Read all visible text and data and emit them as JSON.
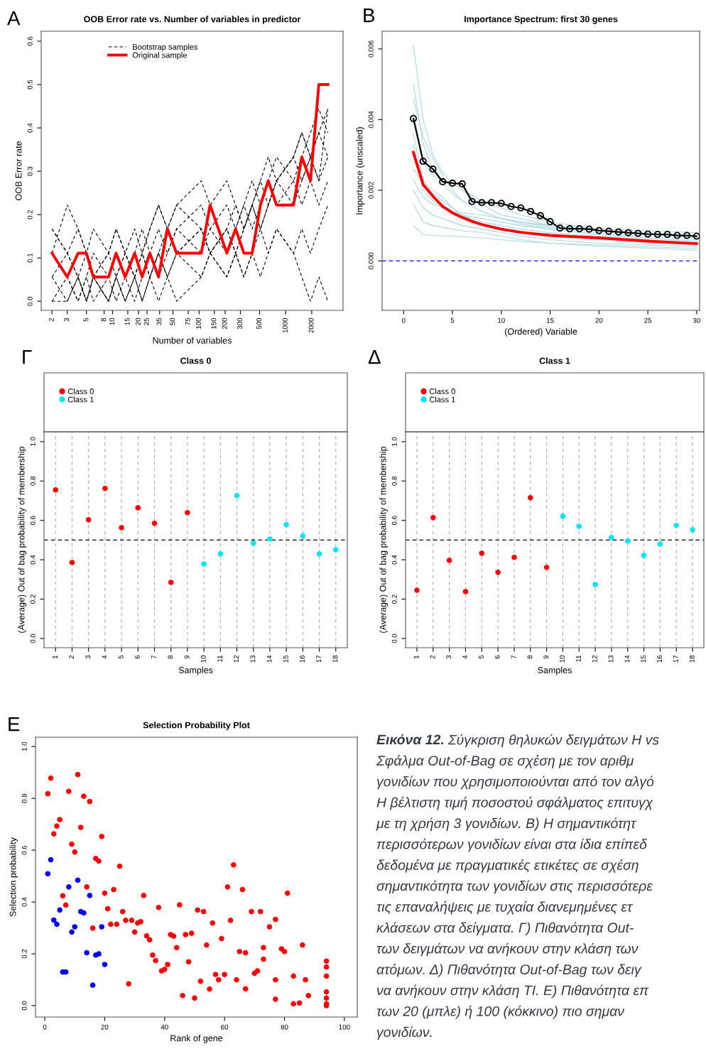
{
  "chart_data": [
    {
      "type": "line",
      "title": "OOB Error rate vs. Number of variables in predictor",
      "xlabel": "Number of variables",
      "ylabel": "OOB Error rate",
      "annotations": [
        "A"
      ],
      "log": "x",
      "legend": "top left",
      "x": [
        2,
        3,
        4,
        5,
        6,
        9,
        11,
        14,
        18,
        22,
        27,
        34,
        43,
        55,
        106,
        134,
        209,
        264,
        329,
        410,
        511,
        629,
        784,
        1233,
        1536,
        1936,
        2415,
        3070
      ],
      "xlim": [
        1.5,
        4600
      ],
      "xticks": [
        2,
        3,
        5,
        8,
        10,
        15,
        20,
        25,
        35,
        50,
        75,
        100,
        150,
        200,
        300,
        500,
        1000,
        2000
      ],
      "ylim": [
        -0.021,
        0.623
      ],
      "yticks": [
        {
          "value": 0,
          "label": "0.0"
        },
        0.1,
        0.2,
        0.3,
        0.4,
        0.5,
        0.6
      ],
      "series": [
        {
          "name": "Bootstrap samples",
          "color": "#000000",
          "line_style": "dashed",
          "values": [
            0.167,
            0.111,
            0.167,
            0.111,
            0.056,
            0.111,
            0.056,
            0.111,
            0.056,
            0.111,
            0.056,
            0.111,
            0.167,
            0.111,
            0.167,
            0.111,
            0.167,
            0.222,
            0.167,
            0.222,
            0.278,
            0.222,
            0.278,
            0.333,
            0.278,
            0.333,
            0.389,
            0.333
          ]
        },
        {
          "color": "#000000",
          "line_style": "dashed",
          "values": [
            0.056,
            0.0,
            0.056,
            0.0,
            0.056,
            0.0,
            0.056,
            0.0,
            0.056,
            0.0,
            0.056,
            0.111,
            0.056,
            0.111,
            0.056,
            0.111,
            0.167,
            0.111,
            0.167,
            0.222,
            0.167,
            0.222,
            0.278,
            0.222,
            0.278,
            0.333,
            0.278,
            0.444
          ]
        },
        {
          "color": "#000000",
          "line_style": "dashed",
          "values": [
            0.111,
            0.056,
            0.0,
            0.056,
            0.0,
            0.056,
            0.0,
            0.056,
            0.0,
            0.056,
            0.111,
            0.056,
            0.111,
            0.167,
            0.111,
            0.167,
            0.111,
            0.167,
            0.222,
            0.278,
            0.222,
            0.278,
            0.222,
            0.278,
            0.333,
            0.389,
            0.444,
            0.389
          ]
        },
        {
          "color": "#000000",
          "line_style": "dashed",
          "values": [
            0.0,
            0.056,
            0.0,
            0.056,
            0.111,
            0.056,
            0.111,
            0.056,
            0.111,
            0.167,
            0.111,
            0.167,
            0.111,
            0.167,
            0.222,
            0.167,
            0.222,
            0.167,
            0.222,
            0.167,
            0.222,
            0.278,
            0.333,
            0.278,
            0.222,
            0.278,
            0.222,
            0.278
          ]
        },
        {
          "color": "#000000",
          "line_style": "dashed",
          "values": [
            0.111,
            0.222,
            0.167,
            0.111,
            0.056,
            0.111,
            0.167,
            0.111,
            0.056,
            0.111,
            0.167,
            0.222,
            0.167,
            0.222,
            0.278,
            0.222,
            0.278,
            0.222,
            0.167,
            0.222,
            0.167,
            0.222,
            0.278,
            0.333,
            0.389,
            0.333,
            0.278,
            0.333
          ]
        },
        {
          "color": "#000000",
          "line_style": "dashed",
          "values": [
            0.056,
            0.111,
            0.056,
            0.0,
            0.056,
            0.0,
            0.056,
            0.111,
            0.056,
            0.111,
            0.056,
            0.111,
            0.056,
            0.111,
            0.167,
            0.111,
            0.056,
            0.111,
            0.056,
            0.111,
            0.167,
            0.111,
            0.167,
            0.111,
            0.167,
            0.111,
            0.167,
            0.222
          ]
        },
        {
          "color": "#000000",
          "line_style": "dashed",
          "values": [
            0.167,
            0.111,
            0.056,
            0.111,
            0.167,
            0.111,
            0.167,
            0.111,
            0.167,
            0.111,
            0.167,
            0.222,
            0.167,
            0.222,
            0.167,
            0.111,
            0.167,
            0.111,
            0.167,
            0.222,
            0.278,
            0.333,
            0.278,
            0.333,
            0.389,
            0.333,
            0.389,
            0.444
          ]
        },
        {
          "color": "#000000",
          "line_style": "dashed",
          "values": [
            0.0,
            0.0,
            0.056,
            0.0,
            0.056,
            0.0,
            0.056,
            0.0,
            0.056,
            0.0,
            0.056,
            0.0,
            0.056,
            0.0,
            0.056,
            0.111,
            0.056,
            0.111,
            0.056,
            0.111,
            0.056,
            0.111,
            0.167,
            0.111,
            0.056,
            0.0,
            0.056,
            0.0
          ]
        },
        {
          "name": "Original sample",
          "color": "#ff0000",
          "line_style": "solid",
          "values": [
            0.111,
            0.056,
            0.111,
            0.111,
            0.056,
            0.056,
            0.111,
            0.056,
            0.111,
            0.056,
            0.111,
            0.056,
            0.167,
            0.111,
            0.111,
            0.222,
            0.111,
            0.167,
            0.111,
            0.111,
            0.222,
            0.278,
            0.222,
            0.222,
            0.333,
            0.278,
            0.5,
            0.5
          ]
        }
      ]
    },
    {
      "type": "line",
      "title": "Importance Spectrum: first 30 genes",
      "xlabel": "(Ordered) Variable",
      "ylabel": "Importance (unscaled)",
      "annotations": [
        "B"
      ],
      "x": [
        1,
        2,
        3,
        4,
        5,
        6,
        8,
        10,
        12,
        15,
        20,
        25,
        30
      ],
      "xlim": [
        -2.2,
        30.3
      ],
      "xticks": [
        0,
        5,
        10,
        15,
        20,
        25,
        30
      ],
      "ylim": [
        -0.0014,
        0.0065
      ],
      "yticks": [
        {
          "value": 0,
          "label": "0.000"
        },
        {
          "value": 0.002,
          "label": "0.002"
        },
        {
          "value": 0.004,
          "label": "0.004"
        },
        {
          "value": 0.006,
          "label": "0.006"
        }
      ],
      "ref_lines": [
        {
          "axis": "y",
          "value": 0,
          "color": "#0000ff",
          "line_style": "dashed"
        }
      ],
      "series": [
        {
          "color": "#add8e6",
          "values": [
            0.0061,
            0.004,
            0.003,
            0.0025,
            0.0022,
            0.002,
            0.0017,
            0.0015,
            0.0013,
            0.0011,
            0.0009,
            0.0008,
            0.0007
          ]
        },
        {
          "color": "#add8e6",
          "values": [
            0.005,
            0.0033,
            0.0026,
            0.0022,
            0.0019,
            0.0017,
            0.0014,
            0.0012,
            0.0011,
            0.00095,
            0.0008,
            0.0007,
            0.0006
          ]
        },
        {
          "color": "#add8e6",
          "values": [
            0.0042,
            0.0028,
            0.0024,
            0.0023,
            0.0022,
            0.002,
            0.0016,
            0.0013,
            0.0012,
            0.001,
            0.00085,
            0.00075,
            0.00065
          ]
        },
        {
          "color": "#add8e6",
          "values": [
            0.0036,
            0.0023,
            0.0019,
            0.0017,
            0.0015,
            0.0013,
            0.0011,
            0.001,
            0.0009,
            0.0008,
            0.0007,
            0.0006,
            0.0005
          ]
        },
        {
          "color": "#add8e6",
          "values": [
            0.0033,
            0.002,
            0.0017,
            0.0015,
            0.0014,
            0.0013,
            0.0012,
            0.0011,
            0.001,
            0.0009,
            0.00075,
            0.00065,
            0.00055
          ]
        },
        {
          "color": "#add8e6",
          "values": [
            0.0026,
            0.0022,
            0.002,
            0.0018,
            0.0015,
            0.0013,
            0.001,
            0.0009,
            0.0008,
            0.00078,
            0.0006,
            0.0005,
            0.00045
          ]
        },
        {
          "color": "#add8e6",
          "values": [
            0.002,
            0.0015,
            0.0013,
            0.0012,
            0.0011,
            0.001,
            0.0009,
            0.0008,
            0.0007,
            0.0006,
            0.0005,
            0.00045,
            0.0004
          ]
        },
        {
          "color": "#add8e6",
          "values": [
            0.0016,
            0.0011,
            0.001,
            0.00095,
            0.0009,
            0.00085,
            0.0008,
            0.0007,
            0.0006,
            0.0005,
            0.00045,
            0.0004,
            0.00035
          ]
        },
        {
          "color": "#add8e6",
          "values": [
            0.001,
            0.00075,
            0.00072,
            0.0007,
            0.0007,
            0.00068,
            0.00065,
            0.0006,
            0.00055,
            0.0005,
            0.00042,
            0.00036,
            0.0003
          ]
        },
        {
          "color": "#add8e6",
          "values": [
            0.0046,
            0.0035,
            0.0029,
            0.0024,
            0.002,
            0.0017,
            0.0014,
            0.0012,
            0.00105,
            0.0009,
            0.00075,
            0.00065,
            0.00055
          ]
        },
        {
          "color": "#add8e6",
          "values": [
            0.0023,
            0.0018,
            0.0016,
            0.0015,
            0.0014,
            0.00135,
            0.0013,
            0.0012,
            0.0011,
            0.001,
            0.0009,
            0.00085,
            0.0008
          ]
        },
        {
          "color": "#ff0000",
          "x": [
            1,
            2,
            3,
            4,
            5,
            6,
            7,
            8,
            10,
            12,
            15,
            20,
            25,
            30
          ],
          "values": [
            0.00307,
            0.00216,
            0.00183,
            0.00154,
            0.00136,
            0.00123,
            0.00112,
            0.00103,
            0.0009,
            0.00081,
            0.00072,
            0.00065,
            0.00056,
            0.00049
          ]
        },
        {
          "color": "#000000",
          "marker": "circle",
          "x": [
            1,
            2,
            3,
            4,
            5,
            6,
            7,
            8,
            9,
            10,
            11,
            12,
            13,
            14,
            15,
            16,
            17,
            18,
            19,
            20,
            21,
            22,
            23,
            24,
            25,
            26,
            27,
            28,
            29,
            30
          ],
          "values": [
            0.00403,
            0.00282,
            0.0026,
            0.00224,
            0.0022,
            0.00218,
            0.00168,
            0.00165,
            0.00165,
            0.00163,
            0.00154,
            0.0015,
            0.0014,
            0.00128,
            0.00111,
            0.00093,
            0.00091,
            0.00091,
            0.0009,
            0.00086,
            0.00084,
            0.00082,
            0.0008,
            0.00078,
            0.00076,
            0.00075,
            0.00075,
            0.00072,
            0.00072,
            0.0007
          ]
        }
      ]
    },
    {
      "type": "scatter",
      "title": "Class 0",
      "xlabel": "Samples",
      "ylabel": "(Average) Out of bag probability of membership",
      "annotations": [
        "Γ"
      ],
      "legend": "top left",
      "grid": "x",
      "marker": "circle",
      "categories": [
        "1",
        "2",
        "3",
        "4",
        "5",
        "6",
        "7",
        "8",
        "9",
        "10",
        "11",
        "12",
        "13",
        "14",
        "15",
        "16",
        "17",
        "18"
      ],
      "ylim": [
        -0.047,
        1.05
      ],
      "yticks": [
        {
          "value": 0,
          "label": "0.0"
        },
        0.2,
        0.4,
        0.6,
        0.8,
        {
          "value": 1,
          "label": "1.0"
        }
      ],
      "ref_lines": [
        {
          "axis": "y",
          "value": 0.5,
          "color": "#000000",
          "line_style": "dashed"
        }
      ],
      "series": [
        {
          "name": "Class 0",
          "color": "#ff0000",
          "values": [
            0.755,
            0.386,
            0.603,
            0.762,
            0.563,
            0.664,
            0.585,
            0.285,
            0.639,
            null,
            null,
            null,
            null,
            null,
            null,
            null,
            null,
            null
          ]
        },
        {
          "name": "Class 1",
          "color": "#00e5ff",
          "values": [
            null,
            null,
            null,
            null,
            null,
            null,
            null,
            null,
            null,
            0.379,
            0.43,
            0.726,
            0.484,
            0.505,
            0.578,
            0.52,
            0.43,
            0.451
          ]
        }
      ]
    },
    {
      "type": "scatter",
      "title": "Class 1",
      "xlabel": "Samples",
      "ylabel": "(Average) Out of bag probability of membership",
      "annotations": [
        "Δ"
      ],
      "legend": "top left",
      "grid": "x",
      "marker": "circle",
      "categories": [
        "1",
        "2",
        "3",
        "4",
        "5",
        "6",
        "7",
        "8",
        "9",
        "10",
        "11",
        "12",
        "13",
        "14",
        "15",
        "16",
        "17",
        "18"
      ],
      "ylim": [
        -0.047,
        1.05
      ],
      "yticks": [
        {
          "value": 0,
          "label": "0.0"
        },
        0.2,
        0.4,
        0.6,
        0.8,
        {
          "value": 1,
          "label": "1.0"
        }
      ],
      "ref_lines": [
        {
          "axis": "y",
          "value": 0.5,
          "color": "#000000",
          "line_style": "dashed"
        }
      ],
      "series": [
        {
          "name": "Class 0",
          "color": "#ff0000",
          "values": [
            0.245,
            0.614,
            0.397,
            0.238,
            0.433,
            0.336,
            0.412,
            0.715,
            0.361,
            null,
            null,
            null,
            null,
            null,
            null,
            null,
            null,
            null
          ]
        },
        {
          "name": "Class 1",
          "color": "#00e5ff",
          "values": [
            null,
            null,
            null,
            null,
            null,
            null,
            null,
            null,
            null,
            0.621,
            0.57,
            0.274,
            0.513,
            0.495,
            0.422,
            0.48,
            0.574,
            0.552
          ]
        }
      ]
    },
    {
      "type": "scatter",
      "title": "Selection Probability Plot",
      "xlabel": "Rank of gene",
      "ylabel": "Selection probability",
      "annotations": [
        "E"
      ],
      "marker": "circle",
      "xlim": [
        -3.1,
        104.3
      ],
      "xticks": [
        0,
        20,
        40,
        60,
        80,
        100
      ],
      "ylim": [
        -0.044,
        1.036
      ],
      "yticks": [
        {
          "value": 0,
          "label": "0.0"
        },
        0.2,
        0.4,
        0.6,
        0.8,
        {
          "value": 1,
          "label": "1.0"
        }
      ],
      "series": [
        {
          "color": "#ff0000",
          "x": [
            1,
            2,
            3,
            4,
            5,
            6,
            7,
            8,
            9,
            10,
            11,
            12,
            13,
            14,
            15,
            16,
            17,
            18,
            19,
            20,
            21,
            22,
            23,
            24,
            25,
            26,
            27,
            28,
            29,
            30,
            31,
            32,
            33,
            34,
            35,
            36,
            37,
            38,
            39,
            40,
            41,
            42,
            43,
            44,
            45,
            46,
            47,
            48,
            49,
            50,
            51,
            52,
            53,
            54,
            55,
            56,
            57,
            58,
            59,
            60,
            61,
            62,
            63,
            64,
            65,
            66,
            67,
            67,
            69,
            70,
            71,
            72,
            73,
            73,
            75,
            77,
            77,
            77,
            79,
            80,
            81,
            83,
            83,
            85,
            86,
            87,
            88,
            94,
            94,
            94,
            94,
            94,
            94,
            94
          ],
          "values": [
            0.818,
            0.878,
            0.663,
            0.693,
            0.718,
            0.424,
            0.388,
            0.827,
            0.623,
            0.593,
            0.892,
            0.688,
            0.808,
            0.458,
            0.788,
            0.299,
            0.568,
            0.558,
            0.653,
            0.434,
            0.374,
            0.314,
            0.448,
            0.314,
            0.538,
            0.363,
            0.329,
            0.084,
            0.329,
            0.284,
            0.319,
            0.324,
            0.425,
            0.269,
            0.254,
            0.195,
            0.174,
            0.379,
            0.134,
            0.14,
            0.159,
            0.274,
            0.268,
            0.224,
            0.389,
            0.039,
            0.274,
            0.169,
            0.279,
            0.029,
            0.369,
            0.094,
            0.363,
            0.234,
            0.064,
            0.319,
            0.12,
            0.1,
            0.259,
            0.12,
            0.458,
            0.329,
            0.543,
            0.1,
            0.209,
            0.448,
            0.204,
            0.065,
            0.363,
            0.125,
            0.134,
            0.363,
            0.224,
            0.179,
            0.304,
            0.333,
            0.1,
            0.025,
            0.219,
            0.209,
            0.434,
            0.114,
            0.007,
            0.01,
            0.234,
            0.1,
            0.039,
            0.172,
            0.149,
            0.114,
            0.053,
            0.029,
            0.007,
            0.0
          ]
        },
        {
          "color": "#0000ff",
          "x": [
            2,
            1,
            11,
            8,
            15,
            5,
            12,
            13,
            3,
            4,
            10,
            19,
            9,
            14,
            17,
            18,
            20,
            6,
            7,
            16
          ],
          "values": [
            0.563,
            0.509,
            0.484,
            0.458,
            0.425,
            0.369,
            0.363,
            0.358,
            0.33,
            0.314,
            0.304,
            0.304,
            0.284,
            0.204,
            0.195,
            0.2,
            0.159,
            0.13,
            0.13,
            0.079
          ]
        }
      ]
    },
    {
      "type": "other",
      "title": "Εικόνα 12.",
      "annotations": [
        "Σύγκριση θηλυκών δειγμάτων Η vs",
        "Σφάλμα Out-of-Bag σε σχέση με τον αριθμ",
        "γονιδίων που χρησιμοποιούνται από τον αλγό",
        "Η βέλτιστη τιμή ποσοστού σφάλματος επιτυγχ",
        "με τη χρήση 3 γονιδίων. Β) Η σημαντικότητ",
        "περισσότερων γονιδίων είναι στα ίδια επίπεδ",
        "δεδομένα με πραγματικές ετικέτες σε σχέση",
        "σημαντικότητα των γονιδίων στις περισσότερε",
        "τις επαναλήψεις με τυχαία διανεμημένες ετ",
        "κλάσεων στα δείγματα. Γ) Πιθανότητα Out-",
        "των δειγμάτων να ανήκουν στην κλάση των",
        "ατόμων. Δ) Πιθανότητα Out-of-Bag των δειγ",
        "να ανήκουν στην κλάση ΤΙ. Ε) Πιθανότητα επ",
        "των 20 (μπλε) ή 100 (κόκκινο) πιο σημαν",
        "γονιδίων."
      ]
    }
  ]
}
